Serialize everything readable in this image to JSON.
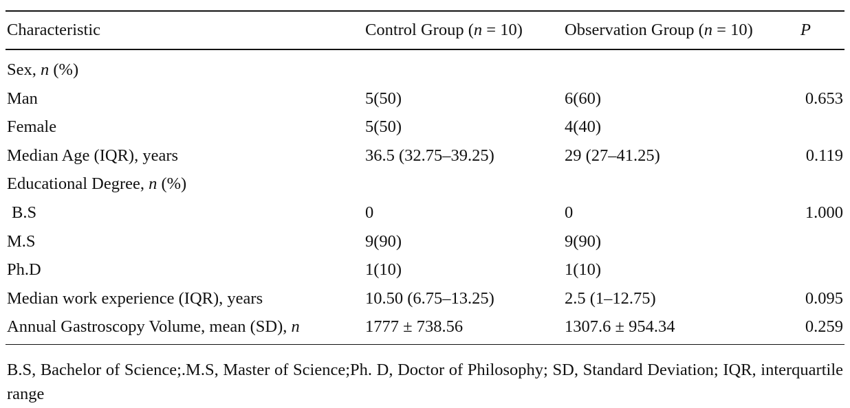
{
  "table": {
    "headers": {
      "characteristic": "Characteristic",
      "control": "Control Group (n = 10)",
      "observation": "Observation Group (n = 10)",
      "p": "P"
    },
    "rows": [
      {
        "label": "Sex, n (%)",
        "control": "",
        "observation": "",
        "p": ""
      },
      {
        "label": "Man",
        "control": "5(50)",
        "observation": "6(60)",
        "p": "0.653"
      },
      {
        "label": "Female",
        "control": "5(50)",
        "observation": "4(40)",
        "p": ""
      },
      {
        "label": "Median Age (IQR), years",
        "control": "36.5 (32.75–39.25)",
        "observation": "29 (27–41.25)",
        "p": "0.119"
      },
      {
        "label": "Educational Degree, n (%)",
        "control": "",
        "observation": "",
        "p": ""
      },
      {
        "label": "B.S",
        "control": "0",
        "observation": "0",
        "p": "1.000"
      },
      {
        "label": "M.S",
        "control": "9(90)",
        "observation": "9(90)",
        "p": ""
      },
      {
        "label": "Ph.D",
        "control": "1(10)",
        "observation": "1(10)",
        "p": ""
      },
      {
        "label": "Median work experience (IQR), years",
        "control": "10.50 (6.75–13.25)",
        "observation": "2.5 (1–12.75)",
        "p": "0.095"
      },
      {
        "label": "Annual Gastroscopy Volume, mean (SD), n",
        "control": "1777 ± 738.56",
        "observation": "1307.6 ± 954.34",
        "p": "0.259"
      }
    ]
  },
  "footnote": "B.S, Bachelor of Science;.M.S, Master of Science;Ph. D, Doctor of Philosophy; SD, Standard Deviation; IQR, interquartile range"
}
